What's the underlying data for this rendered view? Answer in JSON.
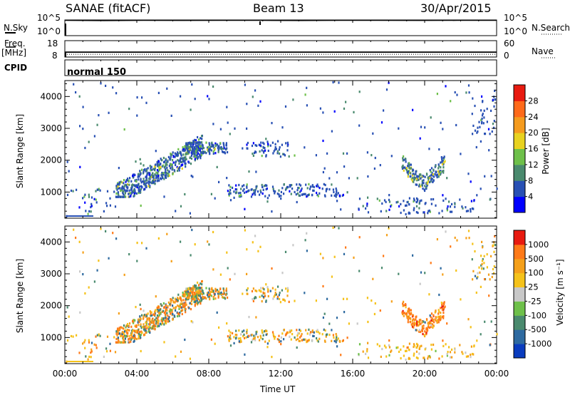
{
  "header": {
    "station": "SANAE (fitACF)",
    "beam": "Beam 13",
    "date": "30/Apr/2015"
  },
  "left_labels": {
    "nsky": "N.Sky",
    "freq": "Freq.",
    "mhz": "[MHz]",
    "cpid": "CPID"
  },
  "right_labels": {
    "nsearch": "N.Search",
    "nave": "Nave"
  },
  "cpid_value": "normal 150",
  "chart_data": [
    {
      "type": "line",
      "name": "noise-panel",
      "series": [
        {
          "name": "N.Sky",
          "style": "solid",
          "values_log10": [
            4.9,
            4.85,
            4.9,
            4.88,
            4.92,
            4.9,
            4.87,
            4.9,
            4.91,
            4.88,
            4.9,
            4.9
          ]
        },
        {
          "name": "N.Search",
          "style": "dotted",
          "values_log10": [
            4.9,
            4.86,
            4.9,
            4.9,
            4.91,
            4.9,
            4.88,
            4.9,
            4.9,
            4.89,
            4.9,
            4.9
          ]
        }
      ],
      "left_ticks": [
        "10^5",
        "10^0"
      ],
      "right_ticks": [
        "10^5",
        "10^0"
      ]
    },
    {
      "type": "line",
      "name": "freq-nave-panel",
      "series": [
        {
          "name": "Freq",
          "style": "solid",
          "value": 11
        },
        {
          "name": "Nave",
          "style": "dotted",
          "value": 10
        }
      ],
      "left_ticks": [
        "18",
        "8"
      ],
      "left_range": [
        8,
        18
      ],
      "right_ticks": [
        "60",
        "0"
      ],
      "right_range": [
        0,
        60
      ]
    },
    {
      "type": "heatmap",
      "name": "power",
      "ylabel": "Slant Range [km]",
      "colorbar_label": "Power [dB]",
      "colorbar_ticks": [
        "4",
        "8",
        "12",
        "16",
        "20",
        "24",
        "28"
      ],
      "colorbar_colors": [
        "#0000ff",
        "#2850b4",
        "#4a8a6e",
        "#6ec04a",
        "#e8d220",
        "#f59b1e",
        "#ff6a1a",
        "#e81a10"
      ],
      "ylim": [
        180,
        4500
      ],
      "y_ticks": [
        1000,
        2000,
        3000,
        4000
      ],
      "y_tick_labels": [
        "1000",
        "2000",
        "3000",
        "4000"
      ]
    },
    {
      "type": "heatmap",
      "name": "velocity",
      "ylabel": "Slant Range [km]",
      "colorbar_label": "Velocity [m s⁻¹]",
      "colorbar_ticks": [
        "1000",
        "500",
        "100",
        "25",
        "-25",
        "-100",
        "-500",
        "-1000"
      ],
      "colorbar_colors": [
        "#0a3cbe",
        "#2e6aa0",
        "#4a8a6e",
        "#6ec04a",
        "#c8c8c8",
        "#f5c21a",
        "#f5a01a",
        "#ff7a18",
        "#e81a10"
      ],
      "ylim": [
        180,
        4500
      ],
      "y_ticks": [
        1000,
        2000,
        3000,
        4000
      ],
      "y_tick_labels": [
        "1000",
        "2000",
        "3000",
        "4000"
      ],
      "xlabel": "Time UT",
      "x_tick_labels": [
        "00:00",
        "04:00",
        "08:00",
        "12:00",
        "16:00",
        "20:00",
        "00:00"
      ],
      "x_range_hours": [
        0,
        24
      ]
    }
  ]
}
